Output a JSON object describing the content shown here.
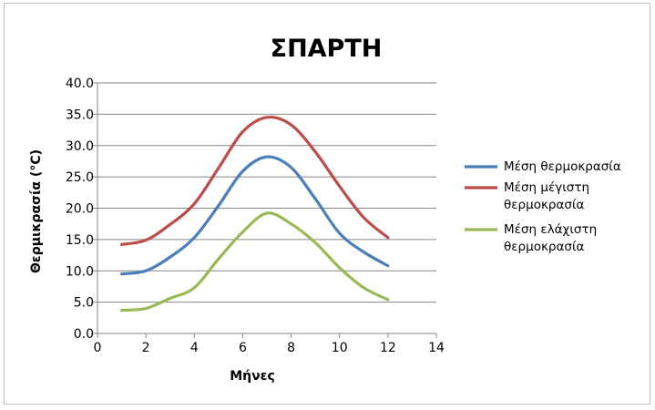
{
  "chart_data": {
    "type": "line",
    "title": "ΣΠΑΡΤΗ",
    "xlabel": "Μήνες",
    "ylabel": "Θερμικρασία (°C)",
    "xlim": [
      0,
      14
    ],
    "ylim": [
      0,
      40
    ],
    "xticks": [
      0,
      2,
      4,
      6,
      8,
      10,
      12,
      14
    ],
    "yticks": [
      "0.0",
      "5.0",
      "10.0",
      "15.0",
      "20.0",
      "25.0",
      "30.0",
      "35.0",
      "40.0"
    ],
    "grid": true,
    "legend_position": "right",
    "x": [
      1,
      2,
      3,
      4,
      5,
      6,
      7,
      8,
      9,
      10,
      11,
      12
    ],
    "series": [
      {
        "name": "Μέση θερμοκρασία",
        "label_lines": [
          "Μέση θερμοκρασία"
        ],
        "color": "#4a7ebb",
        "values": [
          9.5,
          10.0,
          12.2,
          15.3,
          20.4,
          25.9,
          28.2,
          26.5,
          21.5,
          16.0,
          13.0,
          10.8
        ]
      },
      {
        "name": "Μέση μέγιστη θερμοκρασία",
        "label_lines": [
          "Μέση μέγιστη",
          "θερμοκρασία"
        ],
        "color": "#be4b48",
        "values": [
          14.2,
          14.9,
          17.4,
          20.7,
          26.4,
          32.2,
          34.5,
          33.3,
          29.0,
          23.5,
          18.5,
          15.3
        ]
      },
      {
        "name": "Μέση ελάχιστη θερμοκρασία",
        "label_lines": [
          "Μέση ελάχιστη",
          "θερμοκρασία"
        ],
        "color": "#98b954",
        "values": [
          3.7,
          4.0,
          5.6,
          7.3,
          11.9,
          16.2,
          19.2,
          17.5,
          14.5,
          10.5,
          7.3,
          5.4
        ]
      }
    ]
  }
}
